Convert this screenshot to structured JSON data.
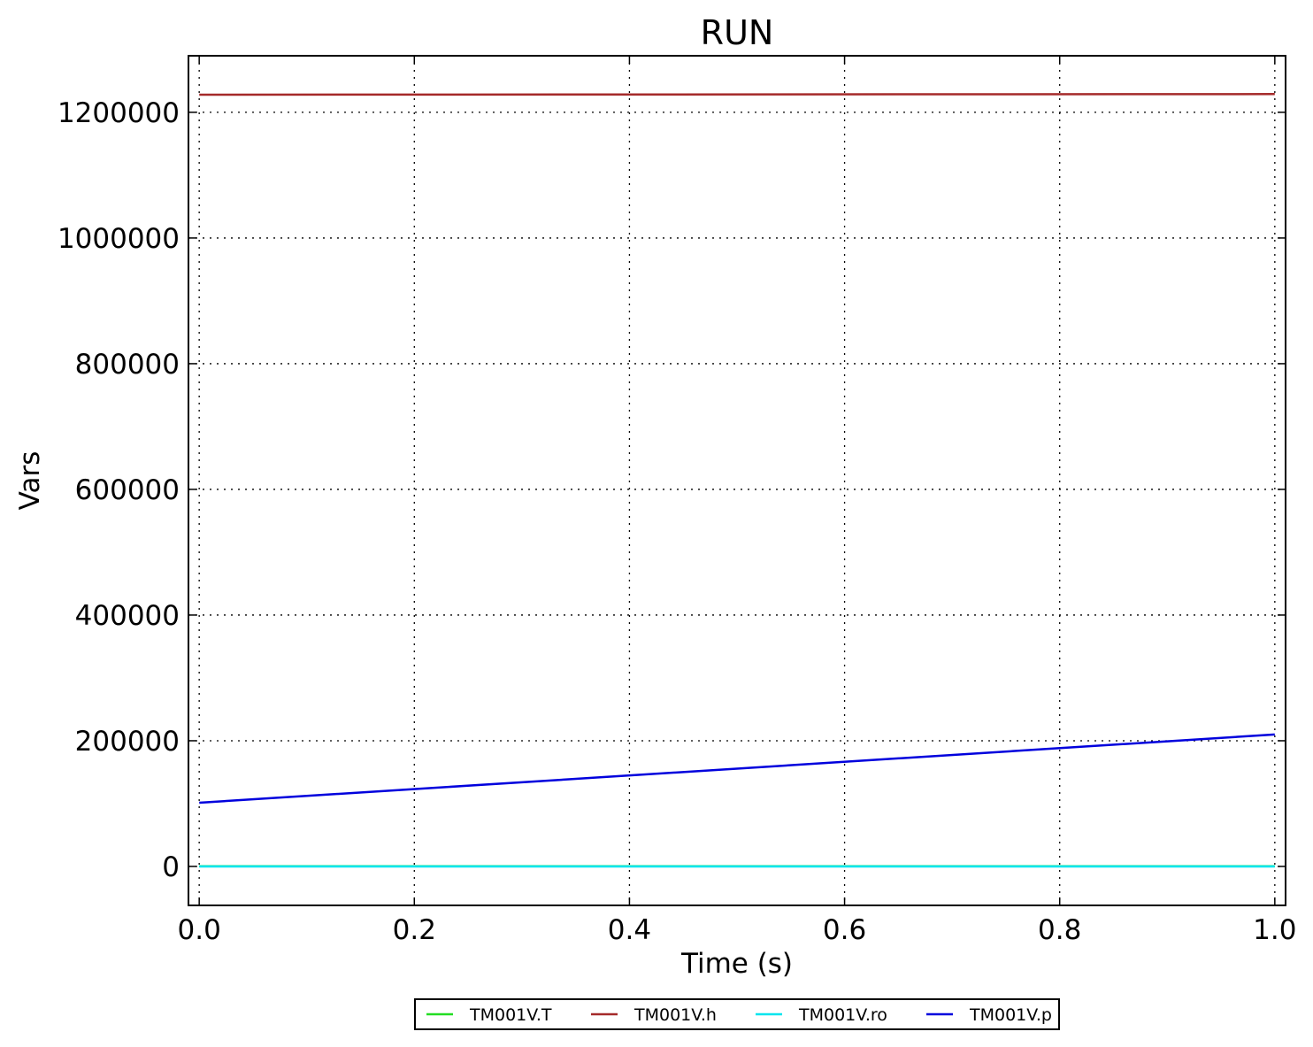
{
  "chart_data": {
    "type": "line",
    "title": "RUN",
    "xlabel": "Time (s)",
    "ylabel": "Vars",
    "xlim": [
      -0.01,
      1.01
    ],
    "ylim": [
      -62000,
      1290000
    ],
    "xticks": [
      0.0,
      0.2,
      0.4,
      0.6,
      0.8,
      1.0
    ],
    "xtick_labels": [
      "0.0",
      "0.2",
      "0.4",
      "0.6",
      "0.8",
      "1.0"
    ],
    "yticks": [
      0,
      200000,
      400000,
      600000,
      800000,
      1000000,
      1200000
    ],
    "ytick_labels": [
      "0",
      "200000",
      "400000",
      "600000",
      "800000",
      "1000000",
      "1200000"
    ],
    "grid": true,
    "legend_position": "bottom-center",
    "series": [
      {
        "name": "TM001V.T",
        "color": "#22dd22",
        "x": [
          0.0,
          1.0
        ],
        "y": [
          300,
          300
        ]
      },
      {
        "name": "TM001V.h",
        "color": "#a52a2a",
        "x": [
          0.0,
          1.0
        ],
        "y": [
          1228000,
          1229000
        ]
      },
      {
        "name": "TM001V.ro",
        "color": "#00e5ee",
        "x": [
          0.0,
          1.0
        ],
        "y": [
          1,
          1
        ]
      },
      {
        "name": "TM001V.p",
        "color": "#0000dd",
        "x": [
          0.0,
          1.0
        ],
        "y": [
          101325,
          210000
        ]
      }
    ]
  }
}
